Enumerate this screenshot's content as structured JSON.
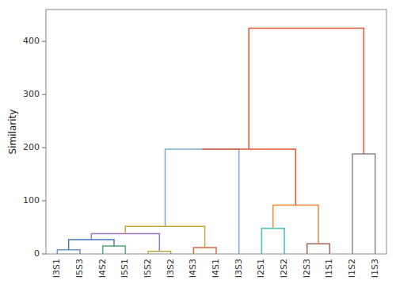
{
  "chart_data": {
    "type": "dendrogram",
    "ylabel": "Similarity",
    "ylim": [
      0,
      460
    ],
    "yticks": [
      0,
      100,
      200,
      300,
      400
    ],
    "tree": {
      "height": 425,
      "color": "#dd5533",
      "children": [
        {
          "height": 197,
          "color": "#dd5533",
          "children": [
            {
              "height": 197,
              "color": "#7aa8cc",
              "children": [
                {
                  "height": 52,
                  "color": "#ccaa33",
                  "children": [
                    {
                      "height": 38,
                      "color": "#9977bb",
                      "children": [
                        {
                          "height": 27,
                          "color": "#4477bb",
                          "children": [
                            {
                              "height": 8,
                              "color": "#6699cc",
                              "children": [
                                {
                                  "label": "I3S1"
                                },
                                {
                                  "label": "I5S3"
                                }
                              ]
                            },
                            {
                              "height": 15,
                              "color": "#55aa77",
                              "children": [
                                {
                                  "label": "I4S2"
                                },
                                {
                                  "label": "I5S1"
                                }
                              ]
                            }
                          ]
                        },
                        {
                          "height": 5,
                          "color": "#bbaa44",
                          "children": [
                            {
                              "label": "I5S2"
                            },
                            {
                              "label": "I3S2"
                            }
                          ]
                        }
                      ]
                    },
                    {
                      "height": 12,
                      "color": "#dd6644",
                      "children": [
                        {
                          "label": "I4S3"
                        },
                        {
                          "label": "I4S1"
                        }
                      ]
                    }
                  ]
                },
                {
                  "label": "I3S3"
                }
              ]
            },
            {
              "height": 92,
              "color": "#ee8833",
              "children": [
                {
                  "height": 48,
                  "color": "#44bbbb",
                  "children": [
                    {
                      "label": "I2S1"
                    },
                    {
                      "label": "I2S2"
                    }
                  ]
                },
                {
                  "height": 19,
                  "color": "#996655",
                  "children": [
                    {
                      "label": "I2S3"
                    },
                    {
                      "label": "I1S1"
                    }
                  ]
                }
              ]
            }
          ]
        },
        {
          "height": 188,
          "color": "#888888",
          "children": [
            {
              "label": "I1S2"
            },
            {
              "label": "I1S3"
            }
          ]
        }
      ]
    }
  }
}
